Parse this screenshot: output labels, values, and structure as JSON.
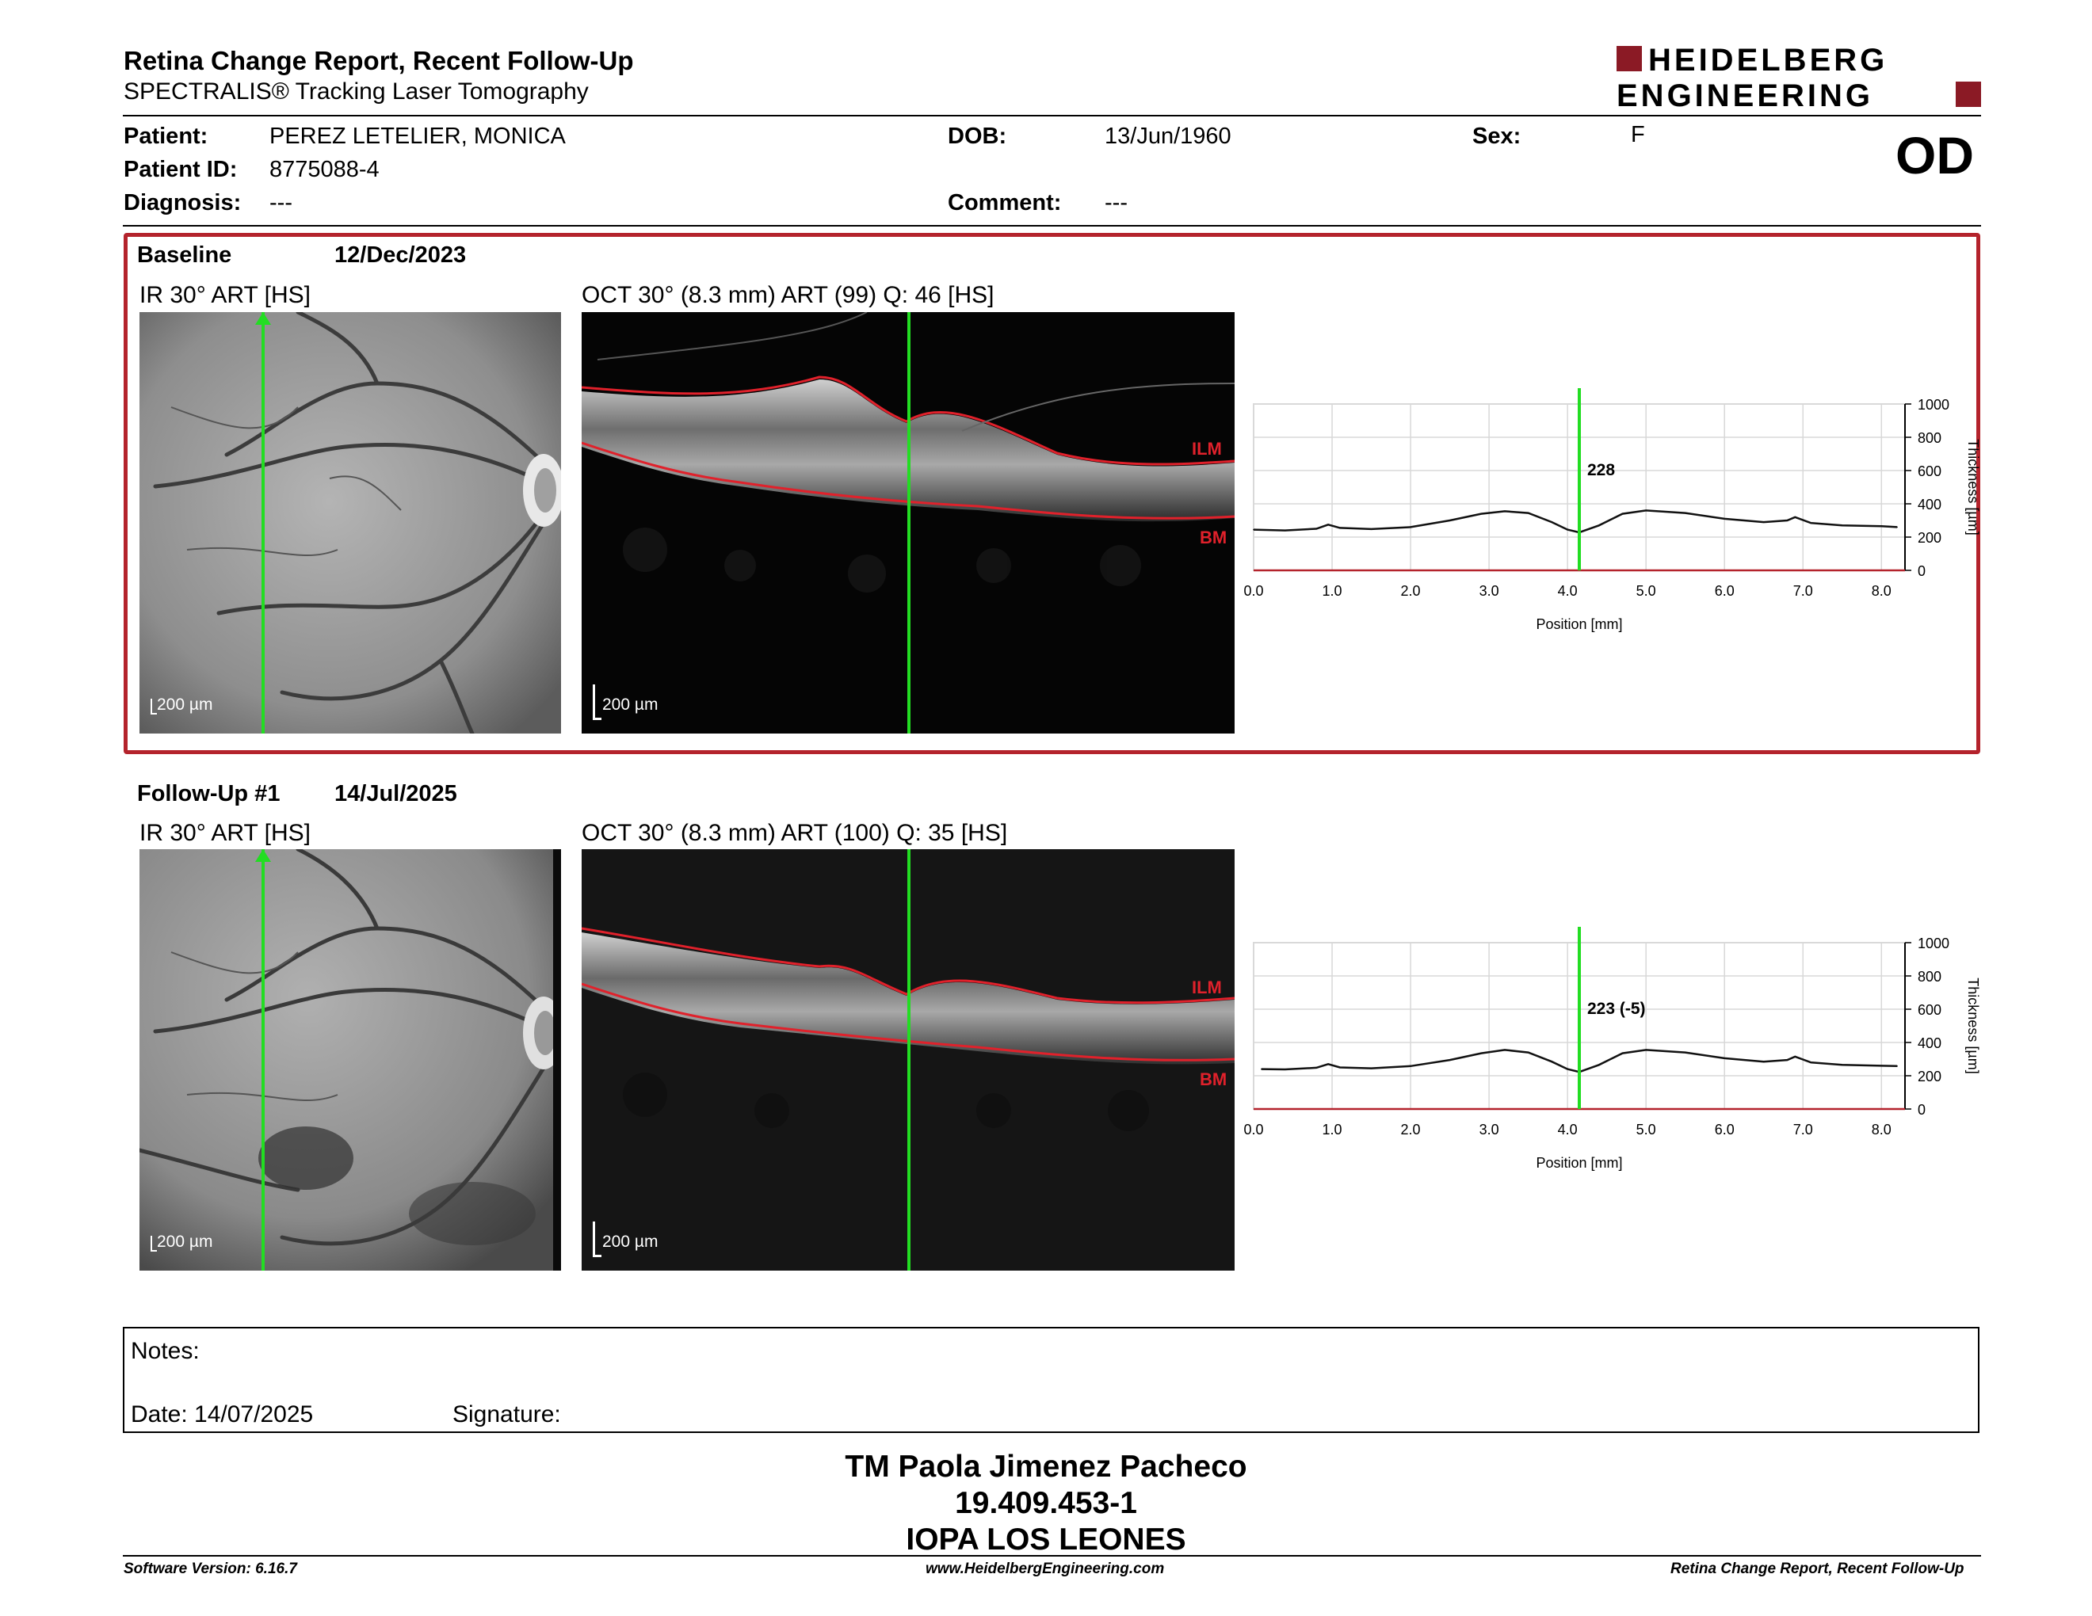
{
  "header": {
    "title": "Retina Change Report, Recent Follow-Up",
    "subtitle": "SPECTRALIS® Tracking Laser Tomography",
    "logo_line1": "HEIDELBERG",
    "logo_line2": "ENGINEERING",
    "eye": "OD"
  },
  "patient": {
    "patient_label": "Patient:",
    "patient_value": "PEREZ LETELIER, MONICA",
    "id_label": "Patient ID:",
    "id_value": "8775088-4",
    "diagnosis_label": "Diagnosis:",
    "diagnosis_value": "---",
    "dob_label": "DOB:",
    "dob_value": "13/Jun/1960",
    "comment_label": "Comment:",
    "comment_value": "---",
    "sex_label": "Sex:",
    "sex_value": "F"
  },
  "baseline": {
    "label": "Baseline",
    "date": "12/Dec/2023",
    "ir_caption": "IR 30° ART [HS]",
    "oct_caption": "OCT 30° (8.3 mm) ART (99) Q: 46 [HS]",
    "ir_scale": "200 µm",
    "oct_scale": "200 µm",
    "ilm": "ILM",
    "bm": "BM",
    "value_label": "228"
  },
  "followup": {
    "label": "Follow-Up #1",
    "date": "14/Jul/2025",
    "ir_caption": "IR 30° ART [HS]",
    "oct_caption": "OCT 30° (8.3 mm) ART (100) Q: 35 [HS]",
    "ir_scale": "200 µm",
    "oct_scale": "200 µm",
    "ilm": "ILM",
    "bm": "BM",
    "value_label": "223 (-5)"
  },
  "chart_data": [
    {
      "type": "line",
      "xlabel": "Position [mm]",
      "ylabel": "Thickness [µm]",
      "xlim": [
        0,
        8.3
      ],
      "ylim": [
        0,
        1000
      ],
      "xticks": [
        "0.0",
        "1.0",
        "2.0",
        "3.0",
        "4.0",
        "5.0",
        "6.0",
        "7.0",
        "8.0"
      ],
      "yticks": [
        "0",
        "200",
        "400",
        "600",
        "800",
        "1000"
      ],
      "cursor_x": 4.15,
      "cursor_label": "228",
      "series": [
        {
          "x": [
            0,
            0.4,
            0.8,
            0.95,
            1.1,
            1.5,
            2.0,
            2.5,
            2.9,
            3.2,
            3.5,
            3.8,
            4.0,
            4.15,
            4.4,
            4.7,
            5.0,
            5.5,
            6.0,
            6.5,
            6.8,
            6.9,
            7.1,
            7.5,
            8.0,
            8.2
          ],
          "y": [
            245,
            240,
            250,
            275,
            255,
            248,
            260,
            300,
            340,
            355,
            345,
            290,
            245,
            228,
            270,
            340,
            360,
            345,
            310,
            290,
            300,
            320,
            285,
            270,
            265,
            260
          ]
        }
      ]
    },
    {
      "type": "line",
      "xlabel": "Position [mm]",
      "ylabel": "Thickness [µm]",
      "xlim": [
        0,
        8.3
      ],
      "ylim": [
        0,
        1000
      ],
      "xticks": [
        "0.0",
        "1.0",
        "2.0",
        "3.0",
        "4.0",
        "5.0",
        "6.0",
        "7.0",
        "8.0"
      ],
      "yticks": [
        "0",
        "200",
        "400",
        "600",
        "800",
        "1000"
      ],
      "cursor_x": 4.15,
      "cursor_label": "223 (-5)",
      "series": [
        {
          "x": [
            0.1,
            0.4,
            0.8,
            0.95,
            1.1,
            1.5,
            2.0,
            2.5,
            2.9,
            3.2,
            3.5,
            3.8,
            4.0,
            4.15,
            4.4,
            4.7,
            5.0,
            5.5,
            6.0,
            6.5,
            6.8,
            6.9,
            7.1,
            7.5,
            8.0,
            8.2
          ],
          "y": [
            240,
            238,
            248,
            270,
            250,
            245,
            258,
            295,
            335,
            355,
            340,
            285,
            240,
            223,
            265,
            335,
            355,
            340,
            305,
            285,
            295,
            315,
            280,
            265,
            260,
            258
          ]
        }
      ]
    }
  ],
  "notes": {
    "notes_label": "Notes:",
    "date_label": "Date: 14/07/2025",
    "signature_label": "Signature:"
  },
  "signer": {
    "name": "TM Paola Jimenez Pacheco",
    "id": "19.409.453-1",
    "org": "IOPA LOS LEONES"
  },
  "footer": {
    "software": "Software Version: 6.16.7",
    "website": "www.HeidelbergEngineering.com",
    "report": "Retina Change Report, Recent Follow-Up"
  },
  "colors": {
    "accent_red": "#b4232c",
    "cursor_green": "#22dd22",
    "layer_red": "#e0212b"
  }
}
